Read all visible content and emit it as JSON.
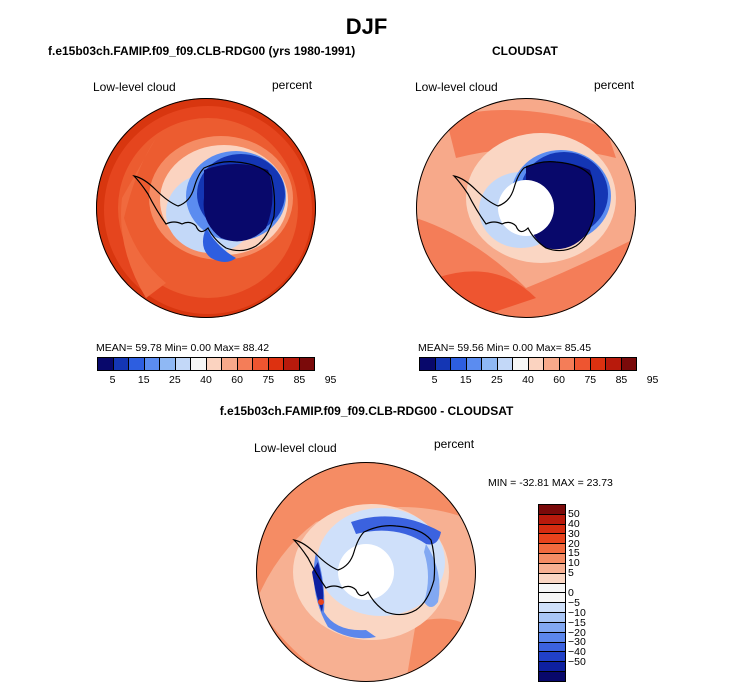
{
  "page_title": "DJF",
  "panels": [
    {
      "title": "f.e15b03ch.FAMIP.f09_f09.CLB-RDG00 (yrs 1980-1991)",
      "left_label": "Low-level cloud",
      "right_label": "percent",
      "stats": "MEAN=   59.78   Min=    0.00   Max=   88.42"
    },
    {
      "title": "CLOUDSAT",
      "left_label": "Low-level cloud",
      "right_label": "percent",
      "stats": "MEAN=   59.56   Min=    0.00   Max=   85.45"
    },
    {
      "title": "f.e15b03ch.FAMIP.f09_f09.CLB-RDG00 - CLOUDSAT",
      "left_label": "Low-level cloud",
      "right_label": "percent",
      "stats": "MIN = -32.81  MAX =  23.73"
    }
  ],
  "abs_colorbar": {
    "colors": [
      "#08086b",
      "#1436b4",
      "#2d5ee0",
      "#5b8cf0",
      "#8fb8f4",
      "#c3d8f8",
      "#f6f6f6",
      "#fbd3c0",
      "#f7a98a",
      "#f47d58",
      "#ee5530",
      "#dd3110",
      "#b81a0c",
      "#7a0a0a"
    ],
    "ticks": [
      "5",
      "15",
      "25",
      "40",
      "60",
      "75",
      "85",
      "95"
    ]
  },
  "diff_colorbar": {
    "colors": [
      "#7a0a0a",
      "#b81a0c",
      "#d52c10",
      "#e8431c",
      "#f26a3e",
      "#f58c64",
      "#f7b092",
      "#fad6c3",
      "#f6f6f6",
      "#f6f6f6",
      "#cfe0fa",
      "#a9c6f6",
      "#82a8f2",
      "#5c87ec",
      "#3b62df",
      "#2141c8",
      "#0e20a0",
      "#08086b"
    ],
    "ticks": [
      "50",
      "40",
      "30",
      "20",
      "15",
      "10",
      "5",
      "0",
      "−5",
      "−10",
      "−15",
      "−20",
      "−30",
      "−40",
      "−50"
    ]
  }
}
